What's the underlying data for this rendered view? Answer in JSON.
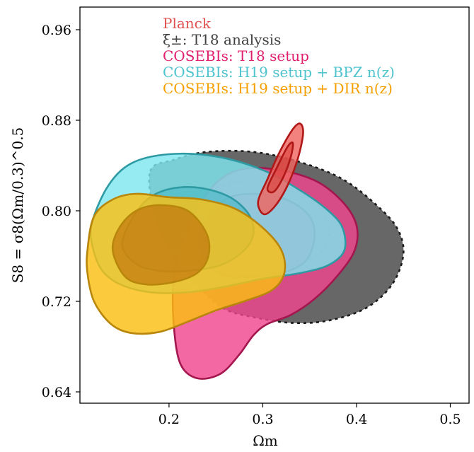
{
  "chart_data": {
    "type": "contour",
    "xlabel": "Ωm",
    "ylabel": "S8 = σ8(Ωm/0.3)^0.5",
    "xlim": [
      0.105,
      0.52
    ],
    "ylim": [
      0.63,
      0.98
    ],
    "x_ticks": [
      {
        "value": 0.2,
        "label": "0.2"
      },
      {
        "value": 0.3,
        "label": "0.3"
      },
      {
        "value": 0.4,
        "label": "0.4"
      },
      {
        "value": 0.5,
        "label": "0.5"
      }
    ],
    "y_ticks": [
      {
        "value": 0.64,
        "label": "0.64"
      },
      {
        "value": 0.72,
        "label": "0.72"
      },
      {
        "value": 0.8,
        "label": "0.80"
      },
      {
        "value": 0.88,
        "label": "0.88"
      },
      {
        "value": 0.96,
        "label": "0.96"
      }
    ],
    "legend_position": "top-center",
    "legend": [
      {
        "label": "Planck",
        "color": "#e0524f"
      },
      {
        "label": "ξ±: T18 analysis",
        "color": "#404040"
      },
      {
        "label": "COSEBIs: T18 setup",
        "color": "#e0206f"
      },
      {
        "label": "COSEBIs: H19 setup + BPZ n(z)",
        "color": "#4fc4cf"
      },
      {
        "label": "COSEBIs: H19 setup + DIR n(z)",
        "color": "#f5a000"
      }
    ],
    "series": [
      {
        "name": "ξ±: T18 analysis",
        "fill": "#5a5a5a",
        "fill_inner": "#5a5a5a",
        "line": "#1a1a1a",
        "dashed": true,
        "outer": [
          [
            0.18,
            0.835
          ],
          [
            0.205,
            0.845
          ],
          [
            0.24,
            0.852
          ],
          [
            0.29,
            0.852
          ],
          [
            0.34,
            0.843
          ],
          [
            0.385,
            0.828
          ],
          [
            0.42,
            0.806
          ],
          [
            0.443,
            0.785
          ],
          [
            0.45,
            0.762
          ],
          [
            0.438,
            0.735
          ],
          [
            0.41,
            0.714
          ],
          [
            0.37,
            0.703
          ],
          [
            0.33,
            0.701
          ],
          [
            0.29,
            0.706
          ],
          [
            0.26,
            0.713
          ],
          [
            0.235,
            0.73
          ],
          [
            0.205,
            0.76
          ],
          [
            0.185,
            0.795
          ]
        ],
        "inner": [
          [
            0.24,
            0.813
          ],
          [
            0.265,
            0.824
          ],
          [
            0.3,
            0.826
          ],
          [
            0.33,
            0.82
          ],
          [
            0.355,
            0.808
          ],
          [
            0.37,
            0.79
          ],
          [
            0.368,
            0.77
          ],
          [
            0.35,
            0.758
          ],
          [
            0.32,
            0.755
          ],
          [
            0.29,
            0.758
          ],
          [
            0.265,
            0.77
          ],
          [
            0.248,
            0.79
          ]
        ]
      },
      {
        "name": "COSEBIs: T18 setup",
        "fill": "#f0458e",
        "fill_inner": "#e7247b",
        "line": "#a3164e",
        "dashed": false,
        "outer": [
          [
            0.215,
            0.775
          ],
          [
            0.24,
            0.815
          ],
          [
            0.27,
            0.835
          ],
          [
            0.31,
            0.837
          ],
          [
            0.355,
            0.827
          ],
          [
            0.385,
            0.808
          ],
          [
            0.4,
            0.787
          ],
          [
            0.398,
            0.765
          ],
          [
            0.38,
            0.743
          ],
          [
            0.355,
            0.722
          ],
          [
            0.33,
            0.708
          ],
          [
            0.305,
            0.7
          ],
          [
            0.29,
            0.69
          ],
          [
            0.275,
            0.673
          ],
          [
            0.255,
            0.656
          ],
          [
            0.23,
            0.652
          ],
          [
            0.212,
            0.665
          ],
          [
            0.205,
            0.7
          ],
          [
            0.205,
            0.74
          ]
        ],
        "inner": [
          [
            0.238,
            0.79
          ],
          [
            0.26,
            0.81
          ],
          [
            0.29,
            0.815
          ],
          [
            0.325,
            0.81
          ],
          [
            0.35,
            0.795
          ],
          [
            0.355,
            0.775
          ],
          [
            0.345,
            0.755
          ],
          [
            0.32,
            0.745
          ],
          [
            0.29,
            0.742
          ],
          [
            0.262,
            0.742
          ],
          [
            0.243,
            0.752
          ],
          [
            0.232,
            0.77
          ]
        ]
      },
      {
        "name": "COSEBIs: H19 setup + BPZ n(z)",
        "fill": "#7fe6ef",
        "fill_inner": "#3fb7c2",
        "line": "#2e9aa3",
        "dashed": false,
        "outer": [
          [
            0.118,
            0.79
          ],
          [
            0.135,
            0.822
          ],
          [
            0.16,
            0.842
          ],
          [
            0.2,
            0.85
          ],
          [
            0.25,
            0.848
          ],
          [
            0.3,
            0.836
          ],
          [
            0.34,
            0.818
          ],
          [
            0.37,
            0.8
          ],
          [
            0.385,
            0.785
          ],
          [
            0.387,
            0.765
          ],
          [
            0.37,
            0.752
          ],
          [
            0.34,
            0.745
          ],
          [
            0.3,
            0.74
          ],
          [
            0.26,
            0.733
          ],
          [
            0.22,
            0.728
          ],
          [
            0.18,
            0.728
          ],
          [
            0.148,
            0.735
          ],
          [
            0.128,
            0.748
          ],
          [
            0.118,
            0.77
          ]
        ],
        "inner": [
          [
            0.15,
            0.77
          ],
          [
            0.162,
            0.795
          ],
          [
            0.18,
            0.812
          ],
          [
            0.205,
            0.82
          ],
          [
            0.235,
            0.82
          ],
          [
            0.265,
            0.812
          ],
          [
            0.285,
            0.797
          ],
          [
            0.29,
            0.78
          ],
          [
            0.28,
            0.765
          ],
          [
            0.255,
            0.752
          ],
          [
            0.22,
            0.747
          ],
          [
            0.19,
            0.747
          ],
          [
            0.165,
            0.753
          ]
        ]
      },
      {
        "name": "COSEBIs: H19 setup + DIR n(z)",
        "fill": "#fbbf12",
        "fill_inner": "#b85e00",
        "line": "#b8860b",
        "dashed": false,
        "outer": [
          [
            0.113,
            0.765
          ],
          [
            0.12,
            0.795
          ],
          [
            0.14,
            0.81
          ],
          [
            0.165,
            0.815
          ],
          [
            0.2,
            0.812
          ],
          [
            0.235,
            0.81
          ],
          [
            0.27,
            0.802
          ],
          [
            0.3,
            0.785
          ],
          [
            0.32,
            0.765
          ],
          [
            0.323,
            0.745
          ],
          [
            0.31,
            0.73
          ],
          [
            0.28,
            0.72
          ],
          [
            0.25,
            0.712
          ],
          [
            0.22,
            0.702
          ],
          [
            0.19,
            0.693
          ],
          [
            0.16,
            0.692
          ],
          [
            0.138,
            0.7
          ],
          [
            0.12,
            0.72
          ],
          [
            0.113,
            0.745
          ]
        ],
        "inner": [
          [
            0.14,
            0.765
          ],
          [
            0.147,
            0.785
          ],
          [
            0.165,
            0.8
          ],
          [
            0.19,
            0.805
          ],
          [
            0.22,
            0.8
          ],
          [
            0.24,
            0.78
          ],
          [
            0.242,
            0.76
          ],
          [
            0.23,
            0.745
          ],
          [
            0.205,
            0.737
          ],
          [
            0.175,
            0.735
          ],
          [
            0.153,
            0.742
          ]
        ]
      },
      {
        "name": "Planck",
        "fill": "#f06560",
        "fill_inner": "#d83a35",
        "line": "#b01818",
        "dashed": false,
        "outer": [
          [
            0.295,
            0.808
          ],
          [
            0.305,
            0.828
          ],
          [
            0.318,
            0.852
          ],
          [
            0.332,
            0.872
          ],
          [
            0.34,
            0.877
          ],
          [
            0.343,
            0.868
          ],
          [
            0.337,
            0.845
          ],
          [
            0.325,
            0.82
          ],
          [
            0.312,
            0.803
          ],
          [
            0.301,
            0.797
          ]
        ],
        "inner": [
          [
            0.305,
            0.82
          ],
          [
            0.315,
            0.838
          ],
          [
            0.326,
            0.856
          ],
          [
            0.332,
            0.86
          ],
          [
            0.33,
            0.848
          ],
          [
            0.322,
            0.83
          ],
          [
            0.312,
            0.817
          ]
        ]
      }
    ]
  }
}
